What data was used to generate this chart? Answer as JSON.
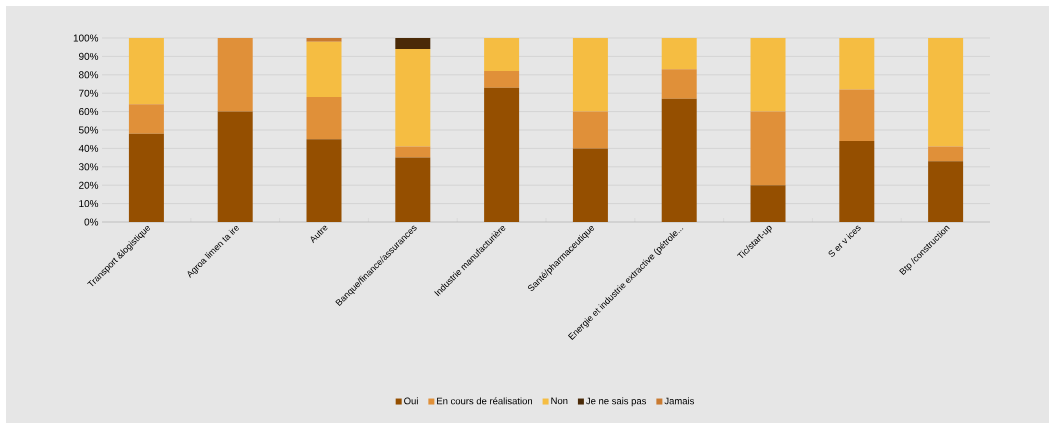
{
  "chart_data": {
    "type": "bar",
    "stacked": true,
    "categories": [
      "Transport &logistique",
      "Agroa limen ta ire",
      "Autre",
      "Banque/finance/assurances",
      "Industrie manufacturière",
      "Santé/pharmaceutique",
      "Energie et industrie extractive (pétrole...",
      "Tic/start-up",
      "S er v ices",
      "Btp /construction"
    ],
    "series": [
      {
        "name": "Oui",
        "color": "#954f00",
        "values": [
          48,
          60,
          45,
          35,
          73,
          40,
          67,
          20,
          44,
          33
        ]
      },
      {
        "name": "En cours de réalisation",
        "color": "#e09039",
        "values": [
          16,
          40,
          23,
          6,
          9,
          20,
          16,
          40,
          28,
          8
        ]
      },
      {
        "name": "Non",
        "color": "#f5bd42",
        "values": [
          36,
          0,
          30,
          53,
          18,
          40,
          17,
          40,
          28,
          59
        ]
      },
      {
        "name": "Je ne sais pas",
        "color": "#4a2a08",
        "values": [
          0,
          0,
          0,
          6,
          0,
          0,
          0,
          0,
          0,
          0
        ]
      },
      {
        "name": "Jamais",
        "color": "#c97a30",
        "values": [
          0,
          0,
          2,
          0,
          0,
          0,
          0,
          0,
          0,
          0
        ]
      }
    ],
    "ylim": [
      0,
      100
    ],
    "yticks": [
      {
        "value": 0,
        "label": "0%"
      },
      {
        "value": 10,
        "label": "10%"
      },
      {
        "value": 20,
        "label": "20%"
      },
      {
        "value": 30,
        "label": "30%"
      },
      {
        "value": 40,
        "label": "40%"
      },
      {
        "value": 50,
        "label": "50%"
      },
      {
        "value": 60,
        "label": "60%"
      },
      {
        "value": 70,
        "label": "70%"
      },
      {
        "value": 80,
        "label": "80%"
      },
      {
        "value": 90,
        "label": "90%"
      },
      {
        "value": 100,
        "label": "100%"
      }
    ],
    "grid": "y",
    "legend": "bottom"
  }
}
